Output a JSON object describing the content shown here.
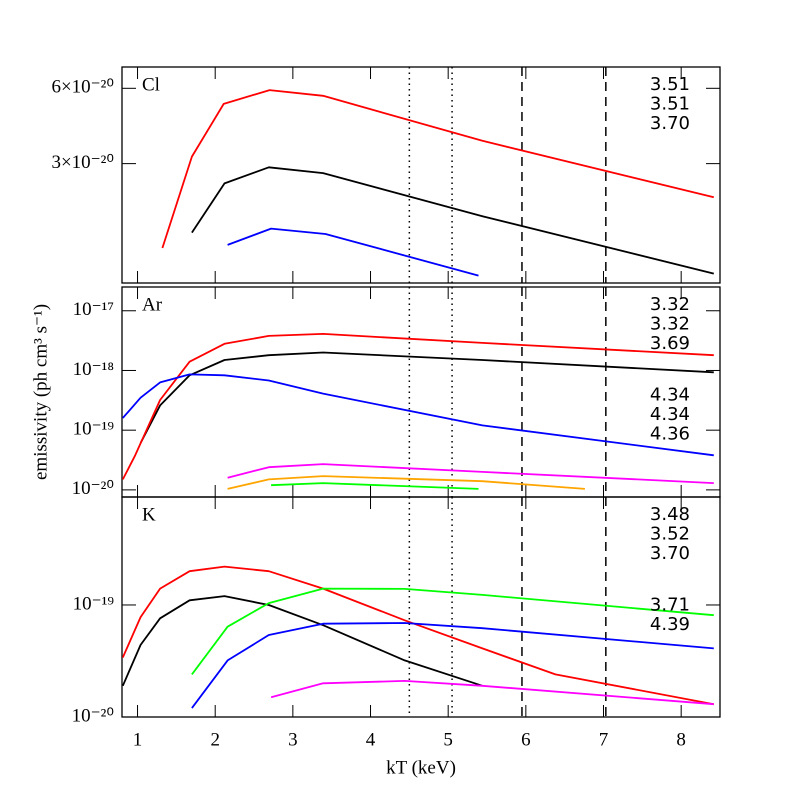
{
  "chart_data": [
    {
      "type": "line",
      "panel_label": "Cl",
      "log_y": true,
      "xlim": [
        0.8,
        8.5
      ],
      "xticks": [
        1,
        2,
        3,
        4,
        5,
        6,
        7,
        8
      ],
      "ylim": [
        1e-20,
        7.3e-20
      ],
      "yticks": [
        {
          "value": 6e-20,
          "label": "6×10⁻²⁰"
        },
        {
          "value": 3e-20,
          "label": "3×10⁻²⁰"
        }
      ],
      "vlines": [
        {
          "x": 4.5,
          "style": "dotted"
        },
        {
          "x": 5.05,
          "style": "dotted"
        },
        {
          "x": 5.95,
          "style": "dashed"
        },
        {
          "x": 7.03,
          "style": "dashed"
        }
      ],
      "series": [
        {
          "name": "3.51",
          "color": "#000000",
          "x": [
            1.7,
            2.12,
            2.69,
            3.39,
            5.44,
            8.42
          ],
          "values": [
            1.59e-20,
            2.5e-20,
            2.9e-20,
            2.75e-20,
            1.85e-20,
            1.09e-20
          ]
        },
        {
          "name": "3.51",
          "color": "#ff0000",
          "x": [
            1.32,
            1.7,
            2.11,
            2.7,
            3.39,
            5.44,
            8.42
          ],
          "values": [
            1.38e-20,
            3.2e-20,
            5.2e-20,
            5.9e-20,
            5.6e-20,
            3.7e-20,
            2.2e-20
          ]
        },
        {
          "name": "3.70",
          "color": "#0000ff",
          "x": [
            2.16,
            2.72,
            3.42,
            5.39
          ],
          "values": [
            1.42e-20,
            1.65e-20,
            1.57e-20,
            1.07e-20
          ]
        }
      ]
    },
    {
      "type": "line",
      "panel_label": "Ar",
      "log_y": true,
      "ylabel": "emissivity (ph cm³ s⁻¹)",
      "xlim": [
        0.8,
        8.5
      ],
      "xticks": [
        1,
        2,
        3,
        4,
        5,
        6,
        7,
        8
      ],
      "ylim": [
        7.6e-21,
        2.5e-17
      ],
      "yticks": [
        {
          "value": 1e-17,
          "label": "10⁻¹⁷"
        },
        {
          "value": 1e-18,
          "label": "10⁻¹⁸"
        },
        {
          "value": 1e-19,
          "label": "10⁻¹⁹"
        },
        {
          "value": 1e-20,
          "label": "10⁻²⁰"
        }
      ],
      "vlines": [
        {
          "x": 4.5,
          "style": "dotted"
        },
        {
          "x": 5.05,
          "style": "dotted"
        },
        {
          "x": 5.95,
          "style": "dashed"
        },
        {
          "x": 7.03,
          "style": "dashed"
        }
      ],
      "series": [
        {
          "name": "3.32",
          "color": "#000000",
          "x": [
            1.04,
            1.29,
            1.67,
            2.12,
            2.69,
            3.39,
            5.44,
            8.42
          ],
          "values": [
            6.1e-20,
            2.6e-19,
            8.3e-19,
            1.5e-18,
            1.8e-18,
            2e-18,
            1.5e-18,
            9.3e-19
          ]
        },
        {
          "name": "3.32",
          "color": "#ff0000",
          "x": [
            0.81,
            0.97,
            1.29,
            1.67,
            2.12,
            2.69,
            3.39,
            5.44,
            8.42
          ],
          "values": [
            1.5e-20,
            3.8e-20,
            3.2e-19,
            1.4e-18,
            2.8e-18,
            3.8e-18,
            4.1e-18,
            2.9e-18,
            1.8e-18
          ]
        },
        {
          "name": "3.69",
          "color": "#0000ff",
          "x": [
            0.81,
            1.04,
            1.29,
            1.67,
            2.12,
            2.69,
            3.39,
            5.44,
            8.42
          ],
          "values": [
            1.6e-19,
            3.5e-19,
            6.3e-19,
            8.6e-19,
            8.3e-19,
            6.8e-19,
            4.1e-19,
            1.2e-19,
            3.8e-20
          ]
        },
        {
          "name": "4.34",
          "color": "#00ff00",
          "x": [
            2.72,
            3.39,
            5.39
          ],
          "values": [
            1.2e-20,
            1.3e-20,
            1.04e-20
          ]
        },
        {
          "name": "4.34",
          "color": "#ff00ff",
          "x": [
            2.16,
            2.69,
            3.39,
            5.44,
            8.42
          ],
          "values": [
            1.6e-20,
            2.4e-20,
            2.7e-20,
            2e-20,
            1.3e-20
          ]
        },
        {
          "name": "4.36",
          "color": "#ffa500",
          "x": [
            2.16,
            2.69,
            3.39,
            5.44,
            6.76
          ],
          "values": [
            1.04e-20,
            1.5e-20,
            1.7e-20,
            1.4e-20,
            1.04e-20
          ]
        }
      ]
    },
    {
      "type": "line",
      "panel_label": "K",
      "log_y": true,
      "xlabel": "kT (keV)",
      "xlim": [
        0.8,
        8.5
      ],
      "xticks": [
        1,
        2,
        3,
        4,
        5,
        6,
        7,
        8
      ],
      "ylim": [
        1e-20,
        9.2e-19
      ],
      "yticks": [
        {
          "value": 1e-19,
          "label": "10⁻¹⁹"
        },
        {
          "value": 1e-20,
          "label": "10⁻²⁰"
        }
      ],
      "vlines": [
        {
          "x": 4.5,
          "style": "dotted"
        },
        {
          "x": 5.05,
          "style": "dotted"
        },
        {
          "x": 5.95,
          "style": "dashed"
        },
        {
          "x": 7.03,
          "style": "dashed"
        }
      ],
      "series": [
        {
          "name": "3.48",
          "color": "#000000",
          "x": [
            0.81,
            1.04,
            1.29,
            1.67,
            2.12,
            2.69,
            3.39,
            4.44,
            5.44
          ],
          "values": [
            1.9e-20,
            4.4e-20,
            7.6e-20,
            1.1e-19,
            1.2e-19,
            1e-19,
            6.6e-20,
            3.2e-20,
            1.9e-20
          ]
        },
        {
          "name": "3.52",
          "color": "#ff0000",
          "x": [
            0.81,
            1.04,
            1.29,
            1.67,
            2.12,
            2.69,
            3.39,
            4.44,
            5.44,
            6.38,
            8.42
          ],
          "values": [
            3.4e-20,
            7.8e-20,
            1.4e-19,
            2e-19,
            2.2e-19,
            2e-19,
            1.4e-19,
            7.3e-20,
            4.1e-20,
            2.4e-20,
            1.3e-20
          ]
        },
        {
          "name": "3.70",
          "color": "#0000ff",
          "x": [
            1.7,
            2.16,
            2.69,
            3.39,
            4.44,
            5.44,
            8.42
          ],
          "values": [
            1.2e-20,
            3.2e-20,
            5.4e-20,
            6.8e-20,
            6.9e-20,
            6.2e-20,
            4.1e-20
          ]
        },
        {
          "name": "3.71",
          "color": "#00ff00",
          "x": [
            1.7,
            2.16,
            2.69,
            3.39,
            4.44,
            5.44,
            8.42
          ],
          "values": [
            2.4e-20,
            6.4e-20,
            1.04e-19,
            1.4e-19,
            1.39e-19,
            1.23e-19,
            8.1e-20
          ]
        },
        {
          "name": "4.39",
          "color": "#ff00ff",
          "x": [
            2.72,
            3.39,
            4.44,
            5.44,
            8.42
          ],
          "values": [
            1.5e-20,
            2e-20,
            2.1e-20,
            1.9e-20,
            1.3e-20
          ]
        }
      ]
    }
  ]
}
